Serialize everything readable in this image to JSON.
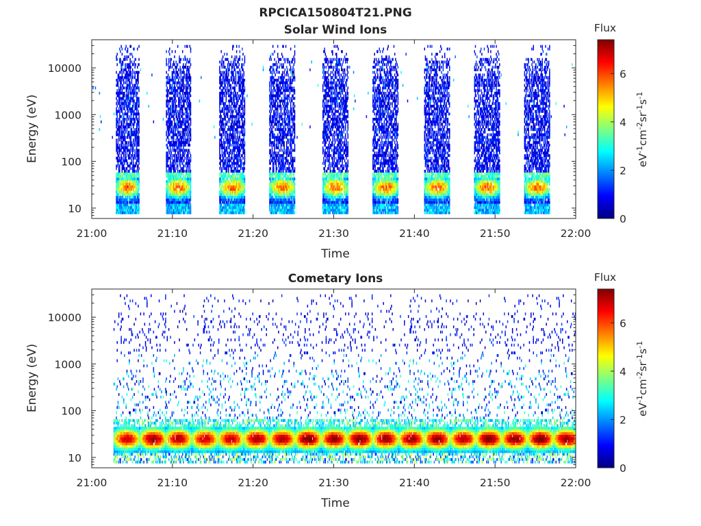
{
  "figure": {
    "filename": "RPCICA150804T21.PNG"
  },
  "chart_data": [
    {
      "type": "heatmap",
      "title": "Solar Wind Ions",
      "xlabel": "Time",
      "ylabel": "Energy (eV)",
      "x_ticks": [
        "21:00",
        "21:10",
        "21:20",
        "21:30",
        "21:40",
        "21:50",
        "22:00"
      ],
      "x_range_minutes": [
        0,
        60
      ],
      "y_scale": "log",
      "y_ticks": [
        10,
        100,
        1000,
        10000
      ],
      "y_tick_labels": [
        "10",
        "100",
        "1000",
        "10000"
      ],
      "y_range": [
        6,
        40000
      ],
      "colorbar": {
        "label": "Flux",
        "units": "eV-1cm-2sr-1s-1",
        "range": [
          0,
          7.4
        ],
        "ticks": [
          0,
          2,
          4,
          6
        ],
        "colormap": "jet"
      },
      "bursts": [
        {
          "start_min": 3.0,
          "end_min": 5.8,
          "peak_energy_ev": 28,
          "peak_flux": 5.0
        },
        {
          "start_min": 9.2,
          "end_min": 12.2,
          "peak_energy_ev": 28,
          "peak_flux": 5.0
        },
        {
          "start_min": 15.8,
          "end_min": 19.0,
          "peak_energy_ev": 28,
          "peak_flux": 5.0
        },
        {
          "start_min": 22.0,
          "end_min": 25.2,
          "peak_energy_ev": 28,
          "peak_flux": 5.0
        },
        {
          "start_min": 28.6,
          "end_min": 31.8,
          "peak_energy_ev": 28,
          "peak_flux": 5.0
        },
        {
          "start_min": 34.8,
          "end_min": 38.0,
          "peak_energy_ev": 28,
          "peak_flux": 5.0
        },
        {
          "start_min": 41.2,
          "end_min": 44.4,
          "peak_energy_ev": 28,
          "peak_flux": 5.0
        },
        {
          "start_min": 47.4,
          "end_min": 50.6,
          "peak_energy_ev": 28,
          "peak_flux": 5.0
        },
        {
          "start_min": 53.6,
          "end_min": 56.8,
          "peak_energy_ev": 28,
          "peak_flux": 5.0
        }
      ]
    },
    {
      "type": "heatmap",
      "title": "Cometary Ions",
      "xlabel": "Time",
      "ylabel": "Energy (eV)",
      "x_ticks": [
        "21:00",
        "21:10",
        "21:20",
        "21:30",
        "21:40",
        "21:50",
        "22:00"
      ],
      "x_range_minutes": [
        0,
        60
      ],
      "y_scale": "log",
      "y_ticks": [
        10,
        100,
        1000,
        10000
      ],
      "y_tick_labels": [
        "10",
        "100",
        "1000",
        "10000"
      ],
      "y_range": [
        6,
        40000
      ],
      "colorbar": {
        "label": "Flux",
        "units": "eV-1cm-2sr-1s-1",
        "range": [
          0,
          7.4
        ],
        "ticks": [
          0,
          2,
          4,
          6
        ],
        "colormap": "jet"
      },
      "bursts": [
        {
          "center_min": 4.3,
          "peak_energy_ev": 25,
          "peak_flux": 6.5
        },
        {
          "center_min": 7.6,
          "peak_energy_ev": 25,
          "peak_flux": 7.0
        },
        {
          "center_min": 10.7,
          "peak_energy_ev": 25,
          "peak_flux": 6.8
        },
        {
          "center_min": 14.0,
          "peak_energy_ev": 25,
          "peak_flux": 6.6
        },
        {
          "center_min": 17.2,
          "peak_energy_ev": 25,
          "peak_flux": 6.6
        },
        {
          "center_min": 20.4,
          "peak_energy_ev": 25,
          "peak_flux": 6.9
        },
        {
          "center_min": 23.6,
          "peak_energy_ev": 25,
          "peak_flux": 6.8
        },
        {
          "center_min": 26.8,
          "peak_energy_ev": 25,
          "peak_flux": 7.2
        },
        {
          "center_min": 30.0,
          "peak_energy_ev": 25,
          "peak_flux": 7.0
        },
        {
          "center_min": 33.2,
          "peak_energy_ev": 25,
          "peak_flux": 7.2
        },
        {
          "center_min": 36.4,
          "peak_energy_ev": 25,
          "peak_flux": 7.0
        },
        {
          "center_min": 39.6,
          "peak_energy_ev": 25,
          "peak_flux": 7.0
        },
        {
          "center_min": 42.8,
          "peak_energy_ev": 25,
          "peak_flux": 7.0
        },
        {
          "center_min": 46.0,
          "peak_energy_ev": 25,
          "peak_flux": 6.8
        },
        {
          "center_min": 49.2,
          "peak_energy_ev": 25,
          "peak_flux": 7.2
        },
        {
          "center_min": 52.4,
          "peak_energy_ev": 25,
          "peak_flux": 7.0
        },
        {
          "center_min": 55.6,
          "peak_energy_ev": 25,
          "peak_flux": 7.2
        },
        {
          "center_min": 58.8,
          "peak_energy_ev": 25,
          "peak_flux": 7.0
        }
      ]
    }
  ]
}
